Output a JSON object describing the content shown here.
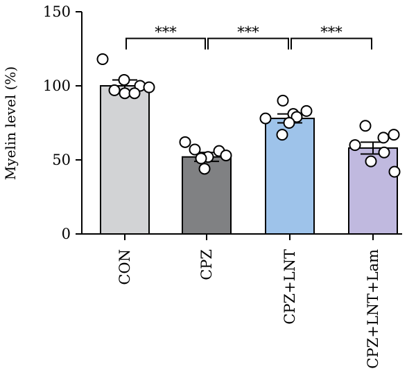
{
  "chart_data": {
    "type": "bar",
    "ylabel": "Myelin level (%)",
    "ylim": [
      0,
      150
    ],
    "yticks": [
      0,
      50,
      100,
      150
    ],
    "categories": [
      "CON",
      "CPZ",
      "CPZ+LNT",
      "CPZ+LNT+Lam"
    ],
    "values": [
      100,
      52,
      78,
      58
    ],
    "errors": [
      4,
      3,
      3,
      4
    ],
    "colors": [
      "#d2d3d5",
      "#808183",
      "#9ec3ea",
      "#c0b9df"
    ],
    "points": [
      [
        118,
        104,
        100,
        99,
        97,
        95,
        95
      ],
      [
        62,
        57,
        56,
        53,
        52,
        51,
        44
      ],
      [
        90,
        83,
        81,
        79,
        78,
        75,
        67
      ],
      [
        73,
        67,
        65,
        60,
        55,
        49,
        42
      ]
    ],
    "significance": [
      {
        "from": 0,
        "to": 1,
        "label": "***",
        "y": 132
      },
      {
        "from": 1,
        "to": 2,
        "label": "***",
        "y": 132
      },
      {
        "from": 2,
        "to": 3,
        "label": "***",
        "y": 132
      }
    ]
  }
}
